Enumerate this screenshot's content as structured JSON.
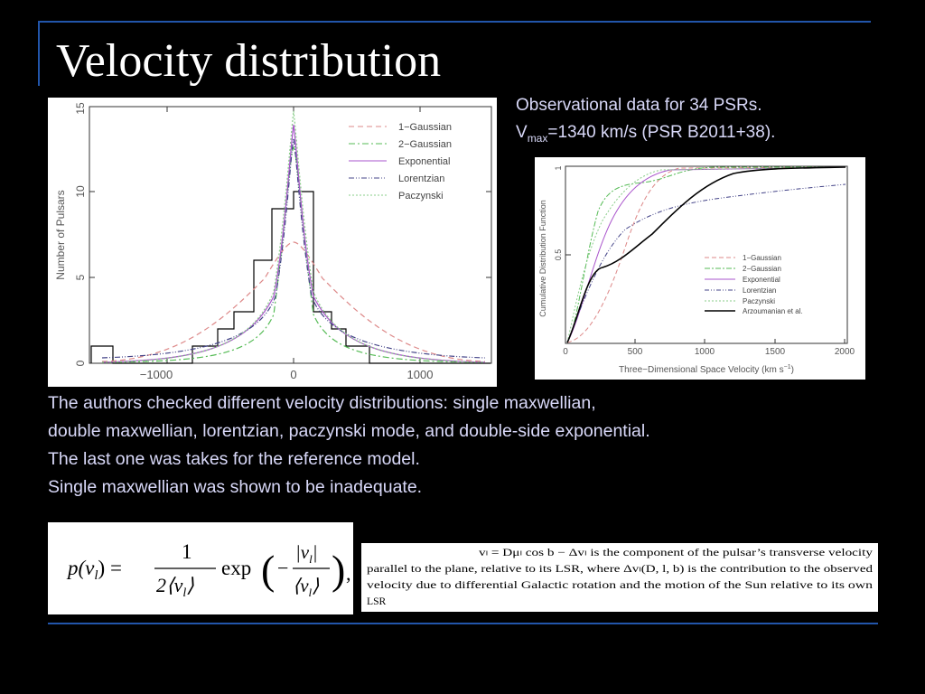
{
  "slide": {
    "title": "Velocity distribution",
    "obs_line1": "Observational data for 34 PSRs.",
    "obs_vmax_v": "V",
    "obs_vmax_sub": "max",
    "obs_vmax_rest": "=1340 km/s (PSR B2011+38).",
    "body_lines": [
      "The authors checked different velocity distributions: single maxwellian,",
      "double maxwellian, lorentzian, paczynski mode, and double-side exponential.",
      "The last one was takes for the reference model.",
      "Single maxwellian was shown to be inadequate."
    ],
    "colors": {
      "background": "#000000",
      "rule": "#2255aa",
      "text": "#d8d8f8"
    }
  },
  "histogram_figure": {
    "ylabel": "Number of Pulsars",
    "xticks": [
      "−1000",
      "0",
      "1000"
    ],
    "yticks": [
      "0",
      "5",
      "10",
      "15"
    ],
    "legend": [
      "1−Gaussian",
      "2−Gaussian",
      "Exponential",
      "Lorentzian",
      "Paczynski"
    ]
  },
  "cdf_figure": {
    "ylabel": "Cumulative Distribution Function",
    "xlabel": "Three−Dimensional Space Velocity  (km s",
    "xlabel_sup": "−1",
    "xlabel_end": ")",
    "xticks": [
      "0",
      "500",
      "1000",
      "1500",
      "2000"
    ],
    "yticks": [
      "1",
      "0.5"
    ],
    "legend": [
      "1−Gaussian",
      "2−Gaussian",
      "Exponential",
      "Lorentzian",
      "Paczynski",
      "Arzoumanian et al."
    ]
  },
  "formula": {
    "lhs": "p(v",
    "sub": "l",
    "lhs_end": ") =",
    "num": "1",
    "den": "2⟨v",
    "den_end": "⟩",
    "exp": "exp",
    "inner_num": "|v",
    "inner_num_end": "|",
    "inner_den": "⟨v",
    "inner_den_end": "⟩"
  },
  "definition": {
    "line1": "vₗ = Dμₗ cos b − Δvₗ is the component of the pulsar’s transverse velocity",
    "line2": "parallel to the plane, relative to its LSR, where Δvₗ(D, l, b) is the contribution to the observed",
    "line3": "velocity due to differential Galactic rotation and the motion of the Sun relative to its own",
    "line4": "LSR"
  }
}
